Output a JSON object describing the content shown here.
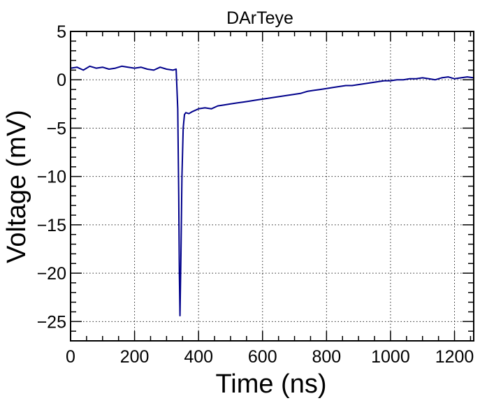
{
  "chart_data": {
    "type": "line",
    "title": "DArTeye",
    "xlabel": "Time (ns)",
    "ylabel": "Voltage (mV)",
    "xlim": [
      0,
      1260
    ],
    "ylim": [
      -27,
      5
    ],
    "x_ticks": [
      0,
      200,
      400,
      600,
      800,
      1000,
      1200
    ],
    "x_tick_labels": [
      "0",
      "200",
      "400",
      "600",
      "800",
      "1000",
      "1200"
    ],
    "y_ticks": [
      5,
      0,
      -5,
      -10,
      -15,
      -20,
      -25
    ],
    "y_tick_labels": [
      "5",
      "0",
      "−5",
      "−10",
      "−15",
      "−20",
      "−25"
    ],
    "grid": true,
    "line_color": "#00008b",
    "series": [
      {
        "x": [
          0,
          20,
          40,
          60,
          80,
          100,
          120,
          140,
          160,
          180,
          200,
          220,
          240,
          260,
          280,
          300,
          320,
          330,
          335,
          338,
          340,
          342,
          345,
          348,
          352,
          356,
          360,
          370,
          380,
          400,
          420,
          440,
          460,
          480,
          500,
          520,
          540,
          560,
          580,
          600,
          620,
          640,
          660,
          680,
          700,
          720,
          740,
          760,
          780,
          800,
          820,
          840,
          860,
          880,
          900,
          920,
          940,
          960,
          980,
          1000,
          1020,
          1040,
          1060,
          1080,
          1100,
          1120,
          1140,
          1160,
          1180,
          1200,
          1220,
          1240,
          1260
        ],
        "y": [
          1.2,
          1.3,
          1.0,
          1.4,
          1.2,
          1.3,
          1.1,
          1.2,
          1.4,
          1.3,
          1.2,
          1.3,
          1.1,
          1.0,
          1.3,
          1.1,
          1.0,
          1.1,
          -3.0,
          -12.0,
          -20.0,
          -24.4,
          -18.0,
          -10.0,
          -5.0,
          -3.6,
          -3.4,
          -3.5,
          -3.3,
          -3.0,
          -2.9,
          -3.0,
          -2.7,
          -2.6,
          -2.5,
          -2.4,
          -2.3,
          -2.2,
          -2.1,
          -2.0,
          -1.9,
          -1.8,
          -1.7,
          -1.6,
          -1.5,
          -1.4,
          -1.2,
          -1.1,
          -1.0,
          -0.9,
          -0.8,
          -0.7,
          -0.6,
          -0.6,
          -0.5,
          -0.4,
          -0.3,
          -0.2,
          -0.1,
          -0.1,
          0.0,
          0.0,
          0.1,
          0.1,
          0.2,
          0.1,
          0.0,
          0.2,
          0.3,
          0.1,
          0.2,
          0.3,
          0.2
        ]
      }
    ]
  }
}
